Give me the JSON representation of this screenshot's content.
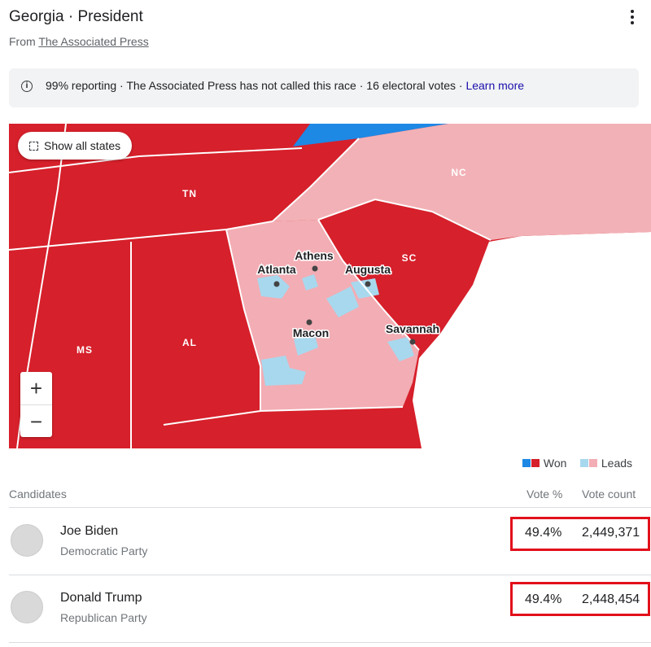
{
  "header": {
    "title": "Georgia · President",
    "source_prefix": "From",
    "source": "The Associated Press"
  },
  "notice": {
    "text": "99% reporting · The Associated Press has not called this race · 16 electoral votes ·",
    "link": "Learn more"
  },
  "map": {
    "button": "Show all states",
    "zoom_in": "+",
    "zoom_out": "−",
    "states": [
      "NC",
      "TN",
      "SC",
      "MS",
      "AL"
    ],
    "cities": [
      "Athens",
      "Atlanta",
      "Augusta",
      "Macon",
      "Savannah"
    ]
  },
  "legend": {
    "won": "Won",
    "leads": "Leads"
  },
  "table": {
    "headers": [
      "Candidates",
      "Vote %",
      "Vote count"
    ],
    "rows": [
      {
        "name": "Joe Biden",
        "party": "Democratic Party",
        "vote_pct": "49.4%",
        "vote_count": "2,449,371"
      },
      {
        "name": "Donald Trump",
        "party": "Republican Party",
        "vote_pct": "49.4%",
        "vote_count": "2,448,454"
      }
    ]
  }
}
